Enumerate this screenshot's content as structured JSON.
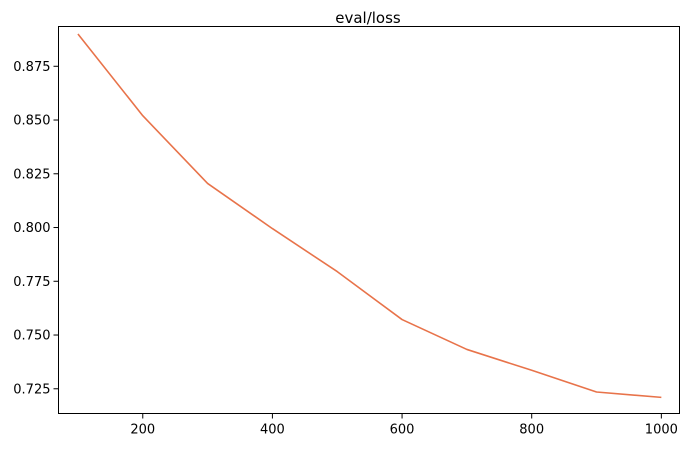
{
  "chart_data": {
    "type": "line",
    "title": "eval/loss",
    "xlabel": "",
    "ylabel": "",
    "xlim": [
      70,
      1028
    ],
    "ylim": [
      0.7135,
      0.8935
    ],
    "grid": false,
    "xticks": [
      200,
      400,
      600,
      800,
      1000
    ],
    "yticks": [
      0.725,
      0.75,
      0.775,
      0.8,
      0.825,
      0.85,
      0.875
    ],
    "xtick_labels": [
      "200",
      "400",
      "600",
      "800",
      "1000"
    ],
    "ytick_labels": [
      "0.725",
      "0.750",
      "0.775",
      "0.800",
      "0.825",
      "0.850",
      "0.875"
    ],
    "series": [
      {
        "color": "#e8734a",
        "x": [
          100,
          200,
          300,
          400,
          500,
          600,
          700,
          800,
          900,
          1000
        ],
        "y": [
          0.89,
          0.852,
          0.8205,
          0.7995,
          0.7795,
          0.7572,
          0.7433,
          0.7336,
          0.7235,
          0.721
        ]
      }
    ]
  }
}
